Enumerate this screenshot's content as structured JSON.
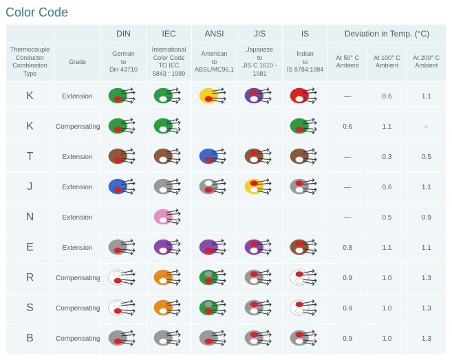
{
  "title": "Color Code",
  "standards": [
    "DIN",
    "IEC",
    "ANSI",
    "JIS",
    "IS"
  ],
  "deviation_header": "Deviation in Temp. (°C)",
  "sub_headers": {
    "type": "Thermocouple\nConductor\nCombination\nType",
    "grade": "Grade",
    "din": "German\nto\nDin 43710",
    "iec": "International\nColor Code\nTO IEC\n5843 : 1989",
    "ansi": "American\nto\nABSL/MC96.1",
    "jis": "Japanese\nto\nJIS C 1610 -\n1981",
    "is": "Indian\nto\nIS 8784:1984",
    "d50": "At 50° C\nAmbient",
    "d100": "At 100° C\nAmbient",
    "d200": "At 200° C\nAmbient"
  },
  "rows": [
    {
      "type": "K",
      "grade": "Extension",
      "cables": {
        "din": {
          "outer": "#2b9d3f",
          "w1": "#2b9d3f",
          "w2": "#d92222"
        },
        "iec": {
          "outer": "#2b9d3f",
          "w1": "#2b9d3f",
          "w2": "#ffffff"
        },
        "ansi": {
          "outer": "#f5d020",
          "w1": "#f5d020",
          "w2": "#d92222"
        },
        "jis": {
          "outer": "#6a4aad",
          "w1": "#d92222",
          "w2": "#ffffff"
        },
        "is": {
          "outer": "#d92222",
          "w1": "#d92222",
          "w2": "#ffffff"
        }
      },
      "dev": [
        "—",
        "0.6",
        "1.1"
      ]
    },
    {
      "type": "K",
      "grade": "Compensating",
      "cables": {
        "din": {
          "outer": "#2b9d3f",
          "w1": "#2b9d3f",
          "w2": "#d92222"
        },
        "iec": {
          "outer": "#2b9d3f",
          "w1": "#2b9d3f",
          "w2": "#ffffff"
        },
        "ansi": null,
        "jis": null,
        "is": {
          "outer": "#2b9d3f",
          "w1": "#2b9d3f",
          "w2": "#d92222"
        }
      },
      "dev": [
        "0.6",
        "1.1",
        "–"
      ]
    },
    {
      "type": "T",
      "grade": "Extension",
      "cables": {
        "din": {
          "outer": "#8a5a3a",
          "w1": "#8a5a3a",
          "w2": "#d92222"
        },
        "iec": {
          "outer": "#8a5a3a",
          "w1": "#8a5a3a",
          "w2": "#ffffff"
        },
        "ansi": {
          "outer": "#3a6acf",
          "w1": "#3a6acf",
          "w2": "#d92222"
        },
        "jis": {
          "outer": "#8a5a3a",
          "w1": "#d92222",
          "w2": "#ffffff"
        },
        "is": {
          "outer": "#8a5a3a",
          "w1": "#8a5a3a",
          "w2": "#ffffff"
        }
      },
      "dev": [
        "—",
        "0.3",
        "0.5"
      ]
    },
    {
      "type": "J",
      "grade": "Extension",
      "cables": {
        "din": {
          "outer": "#3a6acf",
          "w1": "#3a6acf",
          "w2": "#d92222"
        },
        "iec": {
          "outer": "#999999",
          "w1": "#999999",
          "w2": "#ffffff"
        },
        "ansi": {
          "outer": "#999999",
          "w1": "#ffffff",
          "w2": "#d92222"
        },
        "jis": {
          "outer": "#f5d020",
          "w1": "#d92222",
          "w2": "#ffffff"
        },
        "is": {
          "outer": "#999999",
          "w1": "#d92222",
          "w2": "#ffffff"
        }
      },
      "dev": [
        "—",
        "0.6",
        "1.1"
      ]
    },
    {
      "type": "N",
      "grade": "Extension",
      "cables": {
        "din": null,
        "iec": {
          "outer": "#e38fc0",
          "w1": "#e38fc0",
          "w2": "#ffffff"
        },
        "ansi": null,
        "jis": null,
        "is": null
      },
      "dev": [
        "—",
        "0.5",
        "0.9"
      ]
    },
    {
      "type": "E",
      "grade": "Extension",
      "cables": {
        "din": {
          "outer": "#999999",
          "w1": "#999999",
          "w2": "#d92222"
        },
        "iec": {
          "outer": "#8a4aad",
          "w1": "#8a4aad",
          "w2": "#ffffff"
        },
        "ansi": {
          "outer": "#8a4aad",
          "w1": "#8a4aad",
          "w2": "#d92222"
        },
        "jis": {
          "outer": "#8a4aad",
          "w1": "#d92222",
          "w2": "#ffffff"
        },
        "is": {
          "outer": "#8a5a3a",
          "w1": "#d92222",
          "w2": "#ffffff"
        }
      },
      "dev": [
        "0.8",
        "1.1",
        "1.1"
      ]
    },
    {
      "type": "R",
      "grade": "Compensating",
      "cables": {
        "din": {
          "outer": "#ffffff",
          "w1": "#ffffff",
          "w2": "#d92222"
        },
        "iec": {
          "outer": "#e88a1a",
          "w1": "#e88a1a",
          "w2": "#ffffff"
        },
        "ansi": {
          "outer": "#2b9d3f",
          "w1": "#999999",
          "w2": "#d92222"
        },
        "jis": {
          "outer": "#999999",
          "w1": "#d92222",
          "w2": "#ffffff"
        },
        "is": {
          "outer": "#ffffff",
          "w1": "#d92222",
          "w2": "#ffffff"
        }
      },
      "dev": [
        "0.9",
        "1.0",
        "1.3"
      ]
    },
    {
      "type": "S",
      "grade": "Compensating",
      "cables": {
        "din": {
          "outer": "#ffffff",
          "w1": "#ffffff",
          "w2": "#d92222"
        },
        "iec": {
          "outer": "#e88a1a",
          "w1": "#e88a1a",
          "w2": "#ffffff"
        },
        "ansi": {
          "outer": "#2b9d3f",
          "w1": "#999999",
          "w2": "#d92222"
        },
        "jis": {
          "outer": "#999999",
          "w1": "#d92222",
          "w2": "#ffffff"
        },
        "is": {
          "outer": "#ffffff",
          "w1": "#d92222",
          "w2": "#ffffff"
        }
      },
      "dev": [
        "0.9",
        "1.0",
        "1.3"
      ]
    },
    {
      "type": "B",
      "grade": "Compensating",
      "cables": {
        "din": {
          "outer": "#999999",
          "w1": "#999999",
          "w2": "#d92222"
        },
        "iec": {
          "outer": "#999999",
          "w1": "#999999",
          "w2": "#ffffff"
        },
        "ansi": {
          "outer": "#999999",
          "w1": "#999999",
          "w2": "#d92222"
        },
        "jis": {
          "outer": "#999999",
          "w1": "#d92222",
          "w2": "#ffffff"
        },
        "is": {
          "outer": "#999999",
          "w1": "#d92222",
          "w2": "#ffffff"
        }
      },
      "dev": [
        "0.9",
        "1.0",
        "1.3"
      ]
    }
  ],
  "std_keys": [
    "din",
    "iec",
    "ansi",
    "jis",
    "is"
  ]
}
